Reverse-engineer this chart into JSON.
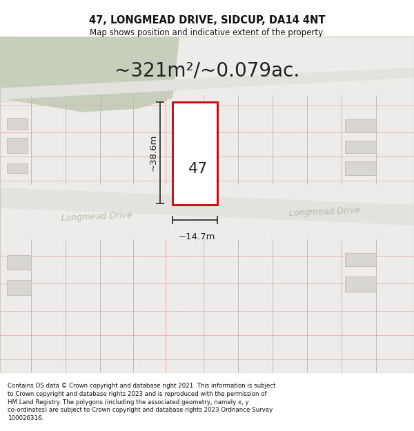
{
  "title_line1": "47, LONGMEAD DRIVE, SIDCUP, DA14 4NT",
  "title_line2": "Map shows position and indicative extent of the property.",
  "area_text": "~321m²/~0.079ac.",
  "label_47": "47",
  "dim_height": "~38.6m",
  "dim_width": "~14.7m",
  "road_label": "Longmead Drive",
  "footer_text": "Contains OS data © Crown copyright and database right 2021. This information is subject to Crown copyright and database rights 2023 and is reproduced with the permission of HM Land Registry. The polygons (including the associated geometry, namely x, y co-ordinates) are subject to Crown copyright and database rights 2023 Ordnance Survey 100026316.",
  "map_bg": "#eeecea",
  "road_fill": "#e4e2de",
  "grid_color": "#e8aaaa",
  "building_fill": "#d8d6d0",
  "building_edge": "#c8b8b8",
  "highlight_fill": "#ffffff",
  "highlight_stroke": "#cc0000",
  "green_color": "#c5cfbc",
  "road_text_color": "#bbbbaa",
  "dim_color": "#333333",
  "title_fontsize": 10.5,
  "subtitle_fontsize": 8.5,
  "area_fontsize": 20,
  "label_fontsize": 16,
  "dim_fontsize": 9.5,
  "road_fontsize": 9,
  "footer_fontsize": 6.2
}
